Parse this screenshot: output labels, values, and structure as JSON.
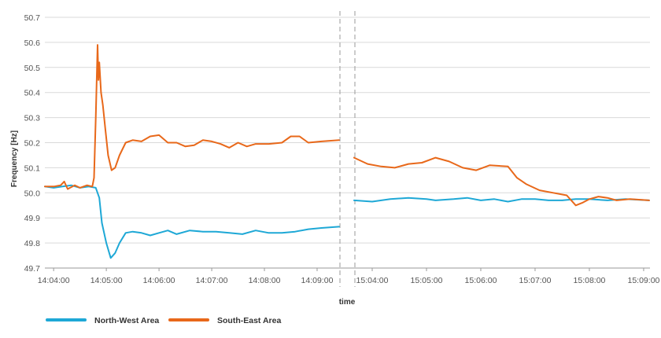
{
  "chart_data": {
    "type": "line",
    "title": "",
    "xlabel": "time",
    "ylabel": "Frequency [Hz]",
    "ylim": [
      49.7,
      50.7
    ],
    "y_ticks": [
      "49.7",
      "49.8",
      "49.9",
      "50.0",
      "50.1",
      "50.2",
      "50.3",
      "50.4",
      "50.5",
      "50.6",
      "50.7"
    ],
    "grid": "horizontal",
    "legend_position": "bottom-left",
    "panels": [
      {
        "x_ticks": [
          "14:04:00",
          "14:05:00",
          "14:06:00",
          "14:07:00",
          "14:08:00",
          "14:09:00"
        ],
        "x_range": [
          "14:03:50",
          "14:09:26"
        ]
      },
      {
        "x_ticks": [
          "15:04:00",
          "15:05:00",
          "15:06:00",
          "15:07:00",
          "15:08:00",
          "15:09:00"
        ],
        "x_range": [
          "15:03:40",
          "15:09:07"
        ]
      }
    ],
    "series": [
      {
        "name": "North-West Area",
        "color": "#1ea8d6",
        "segments": [
          [
            [
              "14:03:50",
              50.025
            ],
            [
              "14:04:00",
              50.02
            ],
            [
              "14:04:10",
              50.025
            ],
            [
              "14:04:20",
              50.03
            ],
            [
              "14:04:30",
              50.02
            ],
            [
              "14:04:40",
              50.025
            ],
            [
              "14:04:48",
              50.02
            ],
            [
              "14:04:52",
              49.98
            ],
            [
              "14:04:55",
              49.88
            ],
            [
              "14:05:00",
              49.8
            ],
            [
              "14:05:05",
              49.74
            ],
            [
              "14:05:10",
              49.76
            ],
            [
              "14:05:15",
              49.8
            ],
            [
              "14:05:22",
              49.84
            ],
            [
              "14:05:30",
              49.845
            ],
            [
              "14:05:40",
              49.84
            ],
            [
              "14:05:50",
              49.83
            ],
            [
              "14:06:00",
              49.84
            ],
            [
              "14:06:10",
              49.85
            ],
            [
              "14:06:20",
              49.835
            ],
            [
              "14:06:35",
              49.85
            ],
            [
              "14:06:50",
              49.845
            ],
            [
              "14:07:05",
              49.845
            ],
            [
              "14:07:20",
              49.84
            ],
            [
              "14:07:35",
              49.835
            ],
            [
              "14:07:50",
              49.85
            ],
            [
              "14:08:05",
              49.84
            ],
            [
              "14:08:20",
              49.84
            ],
            [
              "14:08:35",
              49.845
            ],
            [
              "14:08:50",
              49.855
            ],
            [
              "14:09:05",
              49.86
            ],
            [
              "14:09:25",
              49.865
            ]
          ],
          [
            [
              "15:03:40",
              49.97
            ],
            [
              "15:04:00",
              49.965
            ],
            [
              "15:04:20",
              49.975
            ],
            [
              "15:04:40",
              49.98
            ],
            [
              "15:05:00",
              49.975
            ],
            [
              "15:05:10",
              49.97
            ],
            [
              "15:05:30",
              49.975
            ],
            [
              "15:05:45",
              49.98
            ],
            [
              "15:06:00",
              49.97
            ],
            [
              "15:06:15",
              49.975
            ],
            [
              "15:06:30",
              49.965
            ],
            [
              "15:06:45",
              49.975
            ],
            [
              "15:07:00",
              49.975
            ],
            [
              "15:07:15",
              49.97
            ],
            [
              "15:07:30",
              49.97
            ],
            [
              "15:07:45",
              49.975
            ],
            [
              "15:08:00",
              49.975
            ],
            [
              "15:08:20",
              49.97
            ],
            [
              "15:08:40",
              49.975
            ],
            [
              "15:09:06",
              49.97
            ]
          ]
        ]
      },
      {
        "name": "South-East Area",
        "color": "#e8681a",
        "segments": [
          [
            [
              "14:03:50",
              50.025
            ],
            [
              "14:04:00",
              50.025
            ],
            [
              "14:04:08",
              50.03
            ],
            [
              "14:04:12",
              50.045
            ],
            [
              "14:04:16",
              50.015
            ],
            [
              "14:04:24",
              50.03
            ],
            [
              "14:04:30",
              50.02
            ],
            [
              "14:04:38",
              50.03
            ],
            [
              "14:04:44",
              50.025
            ],
            [
              "14:04:46",
              50.06
            ],
            [
              "14:04:48",
              50.3
            ],
            [
              "14:04:50",
              50.59
            ],
            [
              "14:04:51",
              50.45
            ],
            [
              "14:04:52",
              50.52
            ],
            [
              "14:04:54",
              50.4
            ],
            [
              "14:04:56",
              50.35
            ],
            [
              "14:04:59",
              50.25
            ],
            [
              "14:05:02",
              50.15
            ],
            [
              "14:05:06",
              50.09
            ],
            [
              "14:05:10",
              50.1
            ],
            [
              "14:05:15",
              50.15
            ],
            [
              "14:05:22",
              50.2
            ],
            [
              "14:05:30",
              50.21
            ],
            [
              "14:05:40",
              50.205
            ],
            [
              "14:05:50",
              50.225
            ],
            [
              "14:06:00",
              50.23
            ],
            [
              "14:06:10",
              50.2
            ],
            [
              "14:06:20",
              50.2
            ],
            [
              "14:06:30",
              50.185
            ],
            [
              "14:06:40",
              50.19
            ],
            [
              "14:06:50",
              50.21
            ],
            [
              "14:07:00",
              50.205
            ],
            [
              "14:07:10",
              50.195
            ],
            [
              "14:07:20",
              50.18
            ],
            [
              "14:07:30",
              50.2
            ],
            [
              "14:07:40",
              50.185
            ],
            [
              "14:07:50",
              50.195
            ],
            [
              "14:08:05",
              50.195
            ],
            [
              "14:08:20",
              50.2
            ],
            [
              "14:08:30",
              50.225
            ],
            [
              "14:08:40",
              50.225
            ],
            [
              "14:08:50",
              50.2
            ],
            [
              "14:09:05",
              50.205
            ],
            [
              "14:09:25",
              50.21
            ]
          ],
          [
            [
              "15:03:40",
              50.14
            ],
            [
              "15:03:55",
              50.115
            ],
            [
              "15:04:10",
              50.105
            ],
            [
              "15:04:25",
              50.1
            ],
            [
              "15:04:40",
              50.115
            ],
            [
              "15:04:55",
              50.12
            ],
            [
              "15:05:10",
              50.14
            ],
            [
              "15:05:25",
              50.125
            ],
            [
              "15:05:40",
              50.1
            ],
            [
              "15:05:55",
              50.09
            ],
            [
              "15:06:10",
              50.11
            ],
            [
              "15:06:30",
              50.105
            ],
            [
              "15:06:40",
              50.06
            ],
            [
              "15:06:50",
              50.035
            ],
            [
              "15:07:05",
              50.01
            ],
            [
              "15:07:20",
              50.0
            ],
            [
              "15:07:35",
              49.99
            ],
            [
              "15:07:45",
              49.95
            ],
            [
              "15:07:52",
              49.96
            ],
            [
              "15:08:00",
              49.975
            ],
            [
              "15:08:10",
              49.985
            ],
            [
              "15:08:20",
              49.98
            ],
            [
              "15:08:30",
              49.97
            ],
            [
              "15:08:45",
              49.975
            ],
            [
              "15:09:06",
              49.97
            ]
          ]
        ]
      }
    ]
  }
}
